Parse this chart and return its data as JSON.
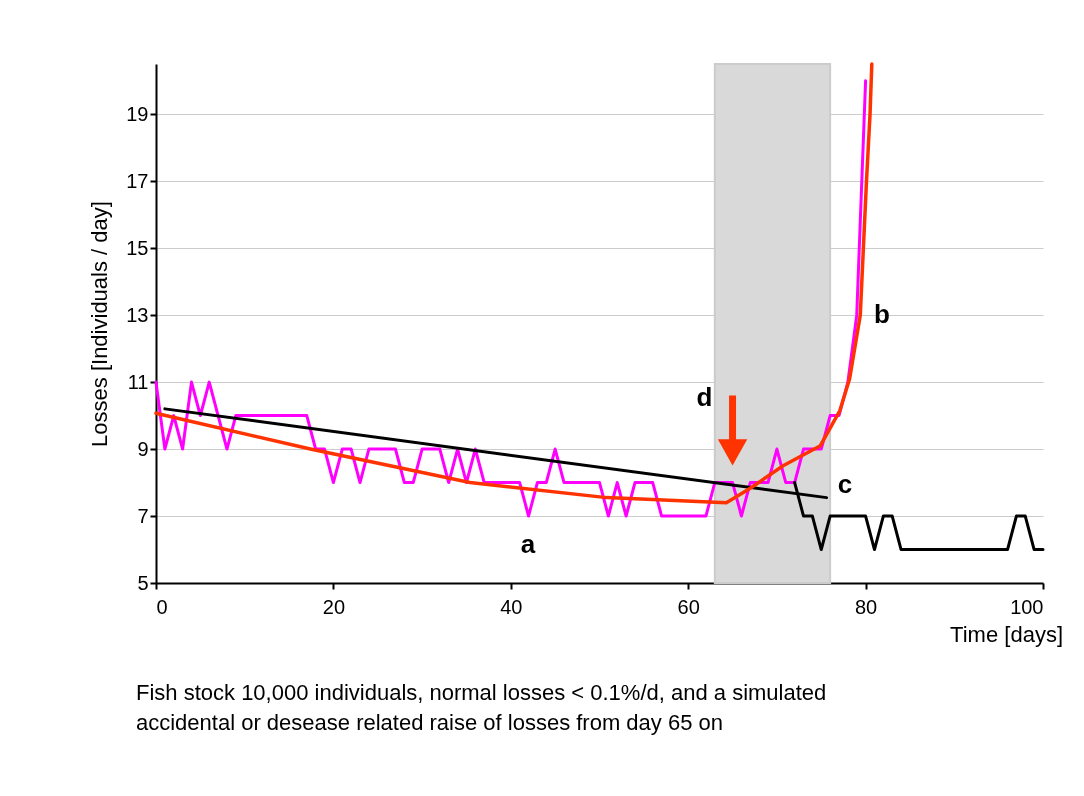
{
  "chart_data": {
    "type": "line",
    "xlabel": "Time [days]",
    "ylabel": "Losses [Individuals / day]",
    "xlim": [
      0,
      100
    ],
    "ylim": [
      5,
      20.5
    ],
    "xticks": [
      0,
      20,
      40,
      60,
      80,
      100
    ],
    "yticks": [
      5,
      7,
      9,
      11,
      13,
      15,
      17,
      19
    ],
    "grid": "y",
    "marker": "none",
    "line_style": "solid",
    "bands": [
      {
        "axis": "x",
        "from": 63,
        "to": 76,
        "color": "#d9d9d9"
      }
    ],
    "series": [
      {
        "color": "#ff00ff",
        "x": [
          0,
          1,
          2,
          3,
          4,
          5,
          6,
          7,
          8,
          9,
          10,
          11,
          12,
          13,
          14,
          15,
          16,
          17,
          18,
          19,
          20,
          21,
          22,
          23,
          24,
          25,
          26,
          27,
          28,
          29,
          30,
          31,
          32,
          33,
          34,
          35,
          36,
          37,
          38,
          39,
          40,
          41,
          42,
          43,
          44,
          45,
          46,
          47,
          48,
          49,
          50,
          51,
          52,
          53,
          54,
          55,
          56,
          57,
          58,
          59,
          60,
          61,
          62,
          63,
          64,
          65,
          66,
          67,
          68,
          69,
          70,
          71,
          72,
          73,
          74,
          75,
          76,
          77,
          78,
          79,
          80
        ],
        "values": [
          11,
          9,
          10,
          9,
          11,
          10,
          11,
          10,
          9,
          10,
          10,
          10,
          10,
          10,
          10,
          10,
          10,
          10,
          9,
          9,
          8,
          9,
          9,
          8,
          9,
          9,
          9,
          9,
          8,
          8,
          9,
          9,
          9,
          8,
          9,
          8,
          9,
          8,
          8,
          8,
          8,
          8,
          7,
          8,
          8,
          9,
          8,
          8,
          8,
          8,
          8,
          7,
          8,
          7,
          8,
          8,
          8,
          7,
          7,
          7,
          7,
          7,
          7,
          8,
          8,
          8,
          7,
          8,
          8,
          8,
          9,
          8,
          8,
          9,
          9,
          9,
          10,
          10,
          11,
          13,
          20
        ]
      },
      {
        "color": "#000000",
        "x": [
          72,
          73,
          74,
          75,
          76,
          77,
          78,
          79,
          80,
          81,
          82,
          83,
          84,
          85,
          86,
          87,
          88,
          89,
          90,
          91,
          92,
          93,
          94,
          95,
          96,
          97,
          98,
          99,
          100
        ],
        "values": [
          8,
          7,
          7,
          6,
          7,
          7,
          7,
          7,
          7,
          6,
          7,
          7,
          6,
          6,
          6,
          6,
          6,
          6,
          6,
          6,
          6,
          6,
          6,
          6,
          6,
          7,
          7,
          6,
          6
        ]
      },
      {
        "color": "#000000",
        "x": [
          1,
          75.6
        ],
        "values": [
          10.2,
          7.55
        ]
      },
      {
        "color": "#ff3300",
        "x": [
          0,
          17.4,
          35.4,
          50.8,
          64.3,
          67,
          70.7,
          74.9,
          77.1,
          78.2,
          79.4,
          80.1,
          80.5,
          80.7
        ],
        "values": [
          10.07,
          9.0,
          8.0,
          7.55,
          7.4,
          7.83,
          8.5,
          9.1,
          10.15,
          11.1,
          13,
          17,
          19,
          20.5
        ]
      }
    ],
    "annotations": [
      "a",
      "b",
      "c",
      {
        "text": "d",
        "x": 65,
        "y": 8
      },
      "Fish stock 10,000 individuals, normal losses < 0.1%/d, and a simulated",
      "accidental or desease related raise of losses from day 65 on"
    ]
  }
}
